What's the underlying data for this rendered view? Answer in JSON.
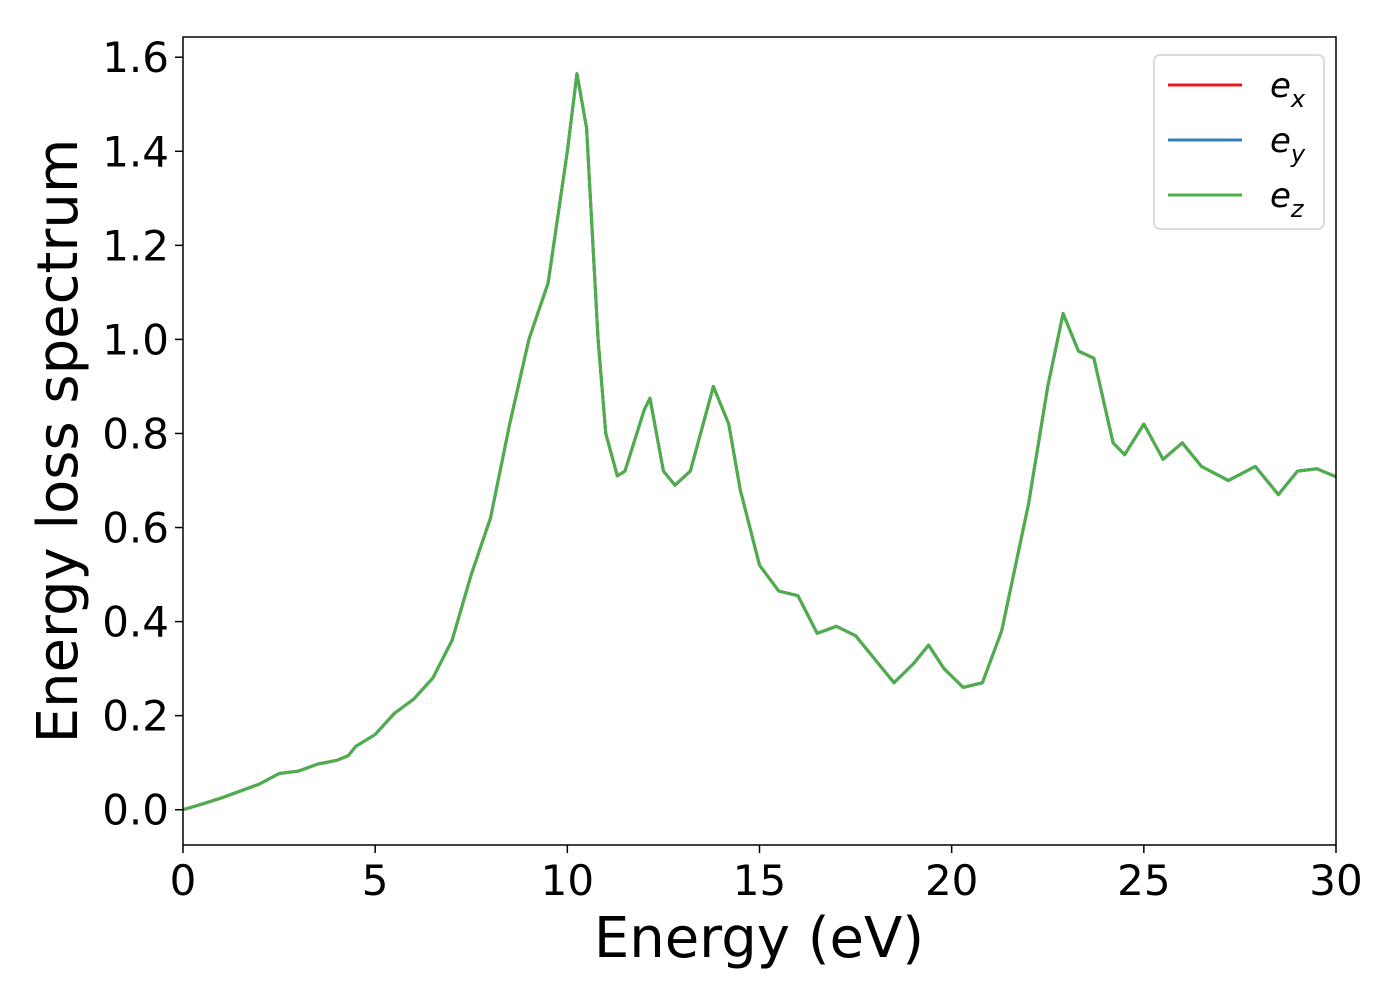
{
  "chart_data": {
    "type": "line",
    "xlabel": "Energy (eV)",
    "ylabel": "Energy loss spectrum",
    "x": [
      0,
      0.5,
      1,
      1.5,
      2,
      2.5,
      3,
      3.5,
      4,
      4.3,
      4.5,
      5,
      5.5,
      6,
      6.5,
      7,
      7.5,
      8,
      8.5,
      9,
      9.5,
      10,
      10.25,
      10.5,
      10.8,
      11,
      11.3,
      11.5,
      12,
      12.15,
      12.5,
      12.8,
      13.2,
      13.8,
      14.2,
      14.5,
      15,
      15.5,
      16,
      16.5,
      17,
      17.5,
      18,
      18.5,
      19,
      19.4,
      19.8,
      20.3,
      20.8,
      21.3,
      22,
      22.5,
      22.9,
      23.3,
      23.7,
      24.2,
      24.5,
      25,
      25.5,
      26,
      26.5,
      27.2,
      27.9,
      28.5,
      29,
      29.5,
      30
    ],
    "series": [
      {
        "name": "e",
        "sub": "x",
        "color": "#e41a1c",
        "values": [
          0,
          0.012,
          0.025,
          0.04,
          0.055,
          0.077,
          0.082,
          0.097,
          0.105,
          0.115,
          0.135,
          0.16,
          0.205,
          0.235,
          0.28,
          0.36,
          0.5,
          0.62,
          0.82,
          1.0,
          1.12,
          1.4,
          1.565,
          1.45,
          1.0,
          0.8,
          0.71,
          0.72,
          0.85,
          0.875,
          0.72,
          0.69,
          0.72,
          0.9,
          0.82,
          0.68,
          0.52,
          0.465,
          0.455,
          0.375,
          0.39,
          0.37,
          0.32,
          0.27,
          0.31,
          0.35,
          0.3,
          0.26,
          0.27,
          0.38,
          0.65,
          0.9,
          1.055,
          0.975,
          0.96,
          0.78,
          0.755,
          0.82,
          0.745,
          0.78,
          0.73,
          0.7,
          0.73,
          0.67,
          0.72,
          0.725,
          0.708
        ]
      },
      {
        "name": "e",
        "sub": "y",
        "color": "#377eb8",
        "values": [
          0,
          0.012,
          0.025,
          0.04,
          0.055,
          0.077,
          0.082,
          0.097,
          0.105,
          0.115,
          0.135,
          0.16,
          0.205,
          0.235,
          0.28,
          0.36,
          0.5,
          0.62,
          0.82,
          1.0,
          1.12,
          1.4,
          1.565,
          1.45,
          1.0,
          0.8,
          0.71,
          0.72,
          0.85,
          0.875,
          0.72,
          0.69,
          0.72,
          0.9,
          0.82,
          0.68,
          0.52,
          0.465,
          0.455,
          0.375,
          0.39,
          0.37,
          0.32,
          0.27,
          0.31,
          0.35,
          0.3,
          0.26,
          0.27,
          0.38,
          0.65,
          0.9,
          1.055,
          0.975,
          0.96,
          0.78,
          0.755,
          0.82,
          0.745,
          0.78,
          0.73,
          0.7,
          0.73,
          0.67,
          0.72,
          0.725,
          0.708
        ]
      },
      {
        "name": "e",
        "sub": "z",
        "color": "#4daf4a",
        "values": [
          0,
          0.012,
          0.025,
          0.04,
          0.055,
          0.077,
          0.082,
          0.097,
          0.105,
          0.115,
          0.135,
          0.16,
          0.205,
          0.235,
          0.28,
          0.36,
          0.5,
          0.62,
          0.82,
          1.0,
          1.12,
          1.4,
          1.565,
          1.45,
          1.0,
          0.8,
          0.71,
          0.72,
          0.85,
          0.875,
          0.72,
          0.69,
          0.72,
          0.9,
          0.82,
          0.68,
          0.52,
          0.465,
          0.455,
          0.375,
          0.39,
          0.37,
          0.32,
          0.27,
          0.31,
          0.35,
          0.3,
          0.26,
          0.27,
          0.38,
          0.65,
          0.9,
          1.055,
          0.975,
          0.96,
          0.78,
          0.755,
          0.82,
          0.745,
          0.78,
          0.73,
          0.7,
          0.73,
          0.67,
          0.72,
          0.725,
          0.708
        ]
      }
    ],
    "xlim": [
      0,
      30
    ],
    "xticks": [
      0,
      5,
      10,
      15,
      20,
      25,
      30
    ],
    "ylim": [
      -0.075,
      1.643
    ],
    "yticks": [
      {
        "value": 0,
        "label": "0.0"
      },
      {
        "value": 0.2,
        "label": "0.2"
      },
      {
        "value": 0.4,
        "label": "0.4"
      },
      {
        "value": 0.6,
        "label": "0.6"
      },
      {
        "value": 0.8,
        "label": "0.8"
      },
      {
        "value": 1.0,
        "label": "1.0"
      },
      {
        "value": 1.2,
        "label": "1.2"
      },
      {
        "value": 1.4,
        "label": "1.4"
      },
      {
        "value": 1.6,
        "label": "1.6"
      }
    ],
    "grid": false,
    "legend": "upper right"
  }
}
